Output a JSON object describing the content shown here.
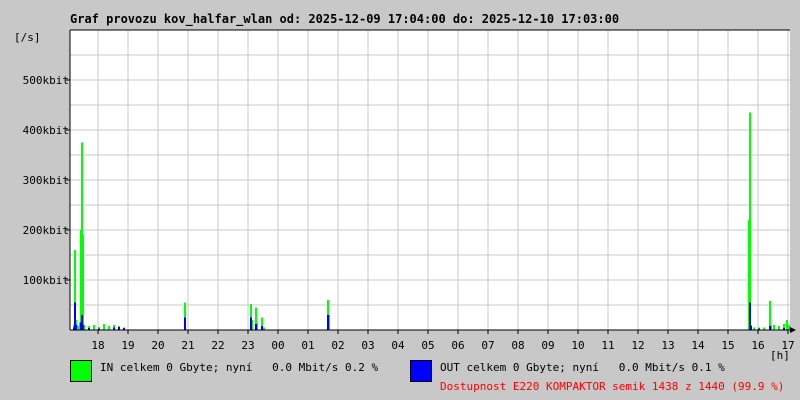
{
  "title": "Graf provozu kov_halfar_wlan od: 2025-12-09 17:04:00 do: 2025-12-10 17:03:00",
  "chart_data": {
    "type": "bar",
    "yunit": "[/s]",
    "xunit": "[h]",
    "ylim": [
      0,
      600000
    ],
    "ytick_labels": [
      {
        "v": 100000,
        "label": "100kbit"
      },
      {
        "v": 200000,
        "label": "200kbit"
      },
      {
        "v": 300000,
        "label": "300kbit"
      },
      {
        "v": 400000,
        "label": "400kbit"
      },
      {
        "v": 500000,
        "label": "500kbit"
      }
    ],
    "xrange": [
      "2025-12-09 17:04",
      "2025-12-10 17:03"
    ],
    "xtick_labels": [
      "18",
      "19",
      "20",
      "21",
      "22",
      "23",
      "00",
      "01",
      "02",
      "03",
      "04",
      "05",
      "06",
      "07",
      "08",
      "09",
      "10",
      "11",
      "12",
      "13",
      "14",
      "15",
      "16",
      "17"
    ],
    "grid": true,
    "series": [
      {
        "name": "IN",
        "color": "#00ff00",
        "points": [
          [
            "17:10",
            10000
          ],
          [
            "17:12",
            160000
          ],
          [
            "17:14",
            20000
          ],
          [
            "17:16",
            10000
          ],
          [
            "17:18",
            8000
          ],
          [
            "17:22",
            15000
          ],
          [
            "17:24",
            200000
          ],
          [
            "17:26",
            375000
          ],
          [
            "17:28",
            190000
          ],
          [
            "17:30",
            10000
          ],
          [
            "17:40",
            8000
          ],
          [
            "17:50",
            10000
          ],
          [
            "18:00",
            6000
          ],
          [
            "18:10",
            12000
          ],
          [
            "18:20",
            8000
          ],
          [
            "18:30",
            10000
          ],
          [
            "18:40",
            8000
          ],
          [
            "18:50",
            5000
          ],
          [
            "20:52",
            55000
          ],
          [
            "23:04",
            52000
          ],
          [
            "23:06",
            20000
          ],
          [
            "23:14",
            45000
          ],
          [
            "23:16",
            15000
          ],
          [
            "23:26",
            25000
          ],
          [
            "23:30",
            5000
          ],
          [
            "01:38",
            60000
          ],
          [
            "01:40",
            30000
          ],
          [
            "15:40",
            220000
          ],
          [
            "15:42",
            435000
          ],
          [
            "15:44",
            10000
          ],
          [
            "15:50",
            5000
          ],
          [
            "16:00",
            5000
          ],
          [
            "16:10",
            5000
          ],
          [
            "16:22",
            58000
          ],
          [
            "16:24",
            10000
          ],
          [
            "16:30",
            10000
          ],
          [
            "16:40",
            8000
          ],
          [
            "16:50",
            12000
          ],
          [
            "16:56",
            20000
          ],
          [
            "17:00",
            10000
          ]
        ]
      },
      {
        "name": "OUT",
        "color": "#0000ff",
        "points": [
          [
            "17:10",
            5000
          ],
          [
            "17:12",
            55000
          ],
          [
            "17:14",
            10000
          ],
          [
            "17:24",
            15000
          ],
          [
            "17:26",
            30000
          ],
          [
            "17:28",
            10000
          ],
          [
            "17:40",
            4000
          ],
          [
            "18:00",
            3000
          ],
          [
            "18:30",
            5000
          ],
          [
            "18:40",
            6000
          ],
          [
            "18:50",
            4000
          ],
          [
            "20:52",
            25000
          ],
          [
            "23:04",
            25000
          ],
          [
            "23:14",
            12000
          ],
          [
            "23:26",
            8000
          ],
          [
            "01:38",
            30000
          ],
          [
            "15:42",
            55000
          ],
          [
            "15:44",
            8000
          ],
          [
            "16:00",
            3000
          ],
          [
            "16:22",
            8000
          ],
          [
            "16:50",
            4000
          ]
        ]
      }
    ]
  },
  "legend": {
    "in": {
      "text": "IN celkem 0 Gbyte; nyní   0.0 Mbit/s 0.2 %",
      "color": "#00ff00"
    },
    "out": {
      "text": "OUT celkem 0 Gbyte; nyní   0.0 Mbit/s 0.1 %",
      "color": "#0000ff"
    },
    "availability": "Dostupnost E220 KOMPAKTOR semik 1438 z 1440 (99.9 %)"
  }
}
